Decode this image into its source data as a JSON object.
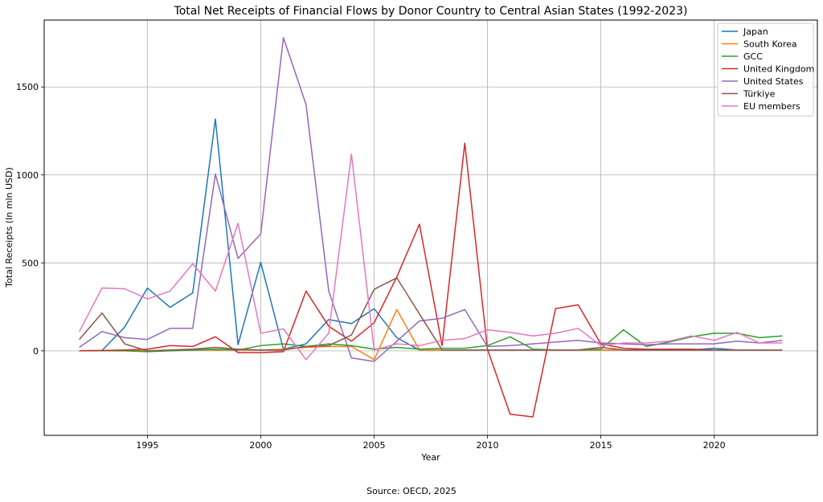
{
  "chart_data": {
    "type": "line",
    "title": "Total Net Receipts of Financial Flows by Donor Country to Central Asian States (1992-2023)",
    "xlabel": "Year",
    "ylabel": "Total Receipts (In mln USD)",
    "source": "Source: OECD, 2025",
    "xlim": [
      1990.45,
      2024.55
    ],
    "ylim": [
      -480,
      1880
    ],
    "xticks": [
      1995,
      2000,
      2005,
      2010,
      2015,
      2020
    ],
    "yticks": [
      0,
      500,
      1000,
      1500
    ],
    "grid": true,
    "legend_position": "top-right",
    "x": [
      1992,
      1993,
      1994,
      1995,
      1996,
      1997,
      1998,
      1999,
      2000,
      2001,
      2002,
      2003,
      2004,
      2005,
      2006,
      2007,
      2008,
      2009,
      2010,
      2011,
      2012,
      2013,
      2014,
      2015,
      2016,
      2017,
      2018,
      2019,
      2020,
      2021,
      2022,
      2023
    ],
    "series": [
      {
        "name": "Japan",
        "color": "#1f77b4",
        "values": [
          0,
          2,
          135,
          357,
          247,
          330,
          1318,
          36,
          503,
          10,
          40,
          178,
          155,
          240,
          75,
          5,
          5,
          5,
          5,
          5,
          5,
          5,
          5,
          5,
          5,
          5,
          10,
          5,
          15,
          5,
          5,
          5
        ]
      },
      {
        "name": "South Korea",
        "color": "#ff7f0e",
        "values": [
          0,
          0,
          0,
          0,
          0,
          5,
          5,
          5,
          5,
          10,
          20,
          25,
          25,
          -50,
          235,
          5,
          5,
          5,
          5,
          5,
          5,
          5,
          5,
          5,
          5,
          5,
          5,
          5,
          5,
          5,
          5,
          5
        ]
      },
      {
        "name": "GCC",
        "color": "#2ca02c",
        "values": [
          0,
          0,
          0,
          -5,
          0,
          5,
          10,
          5,
          30,
          40,
          25,
          40,
          30,
          10,
          20,
          10,
          15,
          15,
          30,
          80,
          10,
          5,
          5,
          10,
          120,
          25,
          50,
          80,
          100,
          100,
          75,
          85
        ]
      },
      {
        "name": "United Kingdom",
        "color": "#d62728",
        "values": [
          0,
          2,
          5,
          10,
          30,
          25,
          80,
          -10,
          -10,
          -5,
          340,
          140,
          55,
          160,
          420,
          720,
          30,
          1180,
          10,
          -360,
          -375,
          240,
          262,
          40,
          15,
          10,
          10,
          10,
          5,
          5,
          5,
          5
        ]
      },
      {
        "name": "United States",
        "color": "#9467bd",
        "values": [
          20,
          110,
          75,
          65,
          128,
          128,
          1005,
          525,
          665,
          1780,
          1400,
          340,
          -40,
          -60,
          55,
          170,
          185,
          235,
          25,
          30,
          40,
          50,
          60,
          45,
          40,
          35,
          40,
          40,
          40,
          55,
          45,
          60
        ]
      },
      {
        "name": "Türkiye",
        "color": "#8c564b",
        "values": [
          65,
          215,
          40,
          0,
          5,
          10,
          20,
          10,
          5,
          5,
          25,
          30,
          90,
          350,
          415,
          210,
          5,
          5,
          5,
          5,
          5,
          5,
          5,
          20,
          5,
          5,
          5,
          5,
          5,
          5,
          5,
          5
        ]
      },
      {
        "name": "EU members",
        "color": "#e377c2",
        "values": [
          110,
          357,
          353,
          295,
          340,
          495,
          340,
          725,
          100,
          125,
          -50,
          100,
          1118,
          5,
          40,
          30,
          60,
          70,
          120,
          105,
          85,
          100,
          128,
          30,
          45,
          45,
          55,
          85,
          60,
          105,
          45,
          45
        ]
      }
    ]
  }
}
